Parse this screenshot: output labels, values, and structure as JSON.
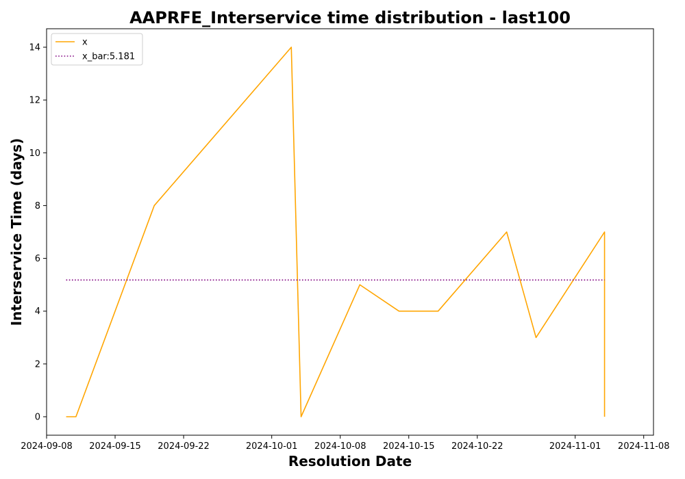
{
  "chart_data": {
    "type": "line",
    "title": "AAPRFE_Interservice time distribution - last100",
    "xlabel": "Resolution Date",
    "ylabel": "Interservice Time (days)",
    "x_type": "date",
    "xlim": [
      "2024-09-08",
      "2024-11-09"
    ],
    "ylim": [
      -0.7,
      14.7
    ],
    "x_ticks": [
      "2024-09-08",
      "2024-09-15",
      "2024-09-22",
      "2024-10-01",
      "2024-10-08",
      "2024-10-15",
      "2024-10-22",
      "2024-11-01",
      "2024-11-08"
    ],
    "y_ticks": [
      0,
      2,
      4,
      6,
      8,
      10,
      12,
      14
    ],
    "grid": false,
    "legend": {
      "position": "top-left"
    },
    "series": [
      {
        "name": "x",
        "color": "#FFA500",
        "style": "solid",
        "points": [
          {
            "x": "2024-09-10",
            "y": 0
          },
          {
            "x": "2024-09-11",
            "y": 0
          },
          {
            "x": "2024-09-19",
            "y": 8
          },
          {
            "x": "2024-10-03",
            "y": 14
          },
          {
            "x": "2024-10-04",
            "y": 0
          },
          {
            "x": "2024-10-10",
            "y": 5
          },
          {
            "x": "2024-10-14",
            "y": 4
          },
          {
            "x": "2024-10-18",
            "y": 4
          },
          {
            "x": "2024-10-25",
            "y": 7
          },
          {
            "x": "2024-10-28",
            "y": 3
          },
          {
            "x": "2024-11-04",
            "y": 7
          },
          {
            "x": "2024-11-04",
            "y": 0
          }
        ]
      },
      {
        "name": "x_bar:5.181",
        "color": "#800080",
        "style": "dotted",
        "points": [
          {
            "x": "2024-09-10",
            "y": 5.181
          },
          {
            "x": "2024-11-04",
            "y": 5.181
          }
        ]
      }
    ]
  }
}
